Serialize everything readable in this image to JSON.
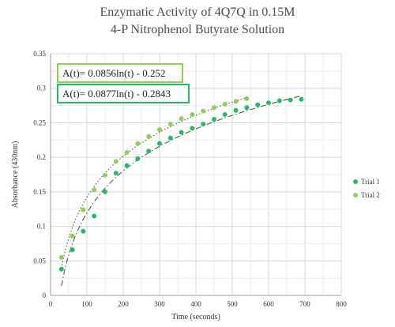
{
  "chart_data": {
    "type": "scatter",
    "title_line1": "Enzymatic Activity of 4Q7Q in 0.15M",
    "title_line2": "4-P Nitrophenol Butyrate Solution",
    "xlabel": "Time (seconds)",
    "ylabel": "Absorbance (430nm)",
    "xlim": [
      0,
      800
    ],
    "ylim": [
      0,
      0.35
    ],
    "x_ticks": [
      "0",
      "100",
      "200",
      "300",
      "400",
      "500",
      "600",
      "700",
      "800"
    ],
    "y_ticks": [
      "0",
      "0.05",
      "0.1",
      "0.15",
      "0.2",
      "0.25",
      "0.3",
      "0.35"
    ],
    "grid": true,
    "legend_position": "right",
    "series": [
      {
        "name": "Trial 1",
        "color": "#1bbf6a",
        "trendline_style": "dash-dot",
        "trendline_equation": "A(t)= 0.0877ln(t) - 0.2843",
        "trendline_a": 0.0877,
        "trendline_b": -0.2843,
        "x": [
          30,
          60,
          90,
          120,
          150,
          180,
          210,
          240,
          270,
          300,
          330,
          360,
          390,
          420,
          450,
          480,
          510,
          540,
          570,
          600,
          630,
          660,
          690
        ],
        "y": [
          0.038,
          0.066,
          0.093,
          0.115,
          0.15,
          0.177,
          0.188,
          0.198,
          0.209,
          0.22,
          0.228,
          0.236,
          0.242,
          0.248,
          0.255,
          0.262,
          0.268,
          0.272,
          0.276,
          0.279,
          0.282,
          0.283,
          0.284
        ]
      },
      {
        "name": "Trial 2",
        "color": "#8fd14f",
        "trendline_style": "dotted",
        "trendline_equation": "A(t)= 0.0856ln(t) - 0.252",
        "trendline_a": 0.0856,
        "trendline_b": -0.252,
        "x": [
          30,
          60,
          90,
          120,
          150,
          180,
          210,
          240,
          270,
          300,
          330,
          360,
          390,
          420,
          450,
          480,
          510,
          540
        ],
        "y": [
          0.055,
          0.086,
          0.124,
          0.153,
          0.174,
          0.194,
          0.207,
          0.22,
          0.23,
          0.24,
          0.248,
          0.256,
          0.262,
          0.267,
          0.272,
          0.277,
          0.281,
          0.285
        ]
      }
    ]
  }
}
